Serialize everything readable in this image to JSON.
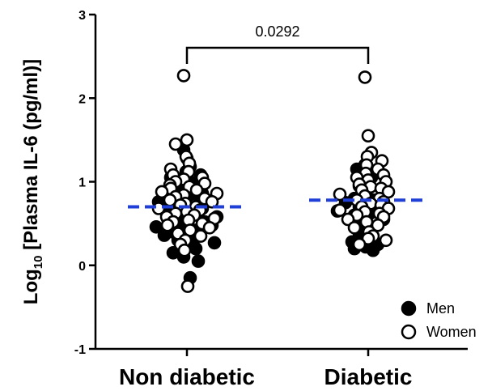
{
  "chart_data": {
    "type": "scatter",
    "ylabel": {
      "prefix": "Log",
      "subscript": "10",
      "suffix": " [Plasma IL-6 (pg/ml)]"
    },
    "ylim": [
      -1,
      3
    ],
    "yticks": [
      "-1",
      "0",
      "1",
      "2",
      "3"
    ],
    "categories": [
      "Non diabetic",
      "Diabetic"
    ],
    "medians": [
      0.7,
      0.78
    ],
    "median_color": "#1f3fd6",
    "comparison": {
      "between": [
        "Non diabetic",
        "Diabetic"
      ],
      "p_value": "0.0292"
    },
    "series": [
      {
        "name": "Men",
        "fill": "#000000",
        "points": [
          {
            "group": "Non diabetic",
            "y": 1.38
          },
          {
            "group": "Non diabetic",
            "y": 1.28
          },
          {
            "group": "Non diabetic",
            "y": 1.18
          },
          {
            "group": "Non diabetic",
            "y": 1.12
          },
          {
            "group": "Non diabetic",
            "y": 1.08
          },
          {
            "group": "Non diabetic",
            "y": 1.05
          },
          {
            "group": "Non diabetic",
            "y": 1.02
          },
          {
            "group": "Non diabetic",
            "y": 0.98
          },
          {
            "group": "Non diabetic",
            "y": 0.95
          },
          {
            "group": "Non diabetic",
            "y": 0.92
          },
          {
            "group": "Non diabetic",
            "y": 0.9
          },
          {
            "group": "Non diabetic",
            "y": 0.88
          },
          {
            "group": "Non diabetic",
            "y": 0.86
          },
          {
            "group": "Non diabetic",
            "y": 0.84
          },
          {
            "group": "Non diabetic",
            "y": 0.82
          },
          {
            "group": "Non diabetic",
            "y": 0.8
          },
          {
            "group": "Non diabetic",
            "y": 0.78
          },
          {
            "group": "Non diabetic",
            "y": 0.76
          },
          {
            "group": "Non diabetic",
            "y": 0.74
          },
          {
            "group": "Non diabetic",
            "y": 0.72
          },
          {
            "group": "Non diabetic",
            "y": 0.7
          },
          {
            "group": "Non diabetic",
            "y": 0.68
          },
          {
            "group": "Non diabetic",
            "y": 0.66
          },
          {
            "group": "Non diabetic",
            "y": 0.64
          },
          {
            "group": "Non diabetic",
            "y": 0.62
          },
          {
            "group": "Non diabetic",
            "y": 0.6
          },
          {
            "group": "Non diabetic",
            "y": 0.58
          },
          {
            "group": "Non diabetic",
            "y": 0.56
          },
          {
            "group": "Non diabetic",
            "y": 0.54
          },
          {
            "group": "Non diabetic",
            "y": 0.52
          },
          {
            "group": "Non diabetic",
            "y": 0.5
          },
          {
            "group": "Non diabetic",
            "y": 0.48
          },
          {
            "group": "Non diabetic",
            "y": 0.46
          },
          {
            "group": "Non diabetic",
            "y": 0.44
          },
          {
            "group": "Non diabetic",
            "y": 0.42
          },
          {
            "group": "Non diabetic",
            "y": 0.4
          },
          {
            "group": "Non diabetic",
            "y": 0.38
          },
          {
            "group": "Non diabetic",
            "y": 0.36
          },
          {
            "group": "Non diabetic",
            "y": 0.34
          },
          {
            "group": "Non diabetic",
            "y": 0.32
          },
          {
            "group": "Non diabetic",
            "y": 0.3
          },
          {
            "group": "Non diabetic",
            "y": 0.27
          },
          {
            "group": "Non diabetic",
            "y": 0.24
          },
          {
            "group": "Non diabetic",
            "y": 0.2
          },
          {
            "group": "Non diabetic",
            "y": 0.15
          },
          {
            "group": "Non diabetic",
            "y": 0.1
          },
          {
            "group": "Non diabetic",
            "y": 0.05
          },
          {
            "group": "Non diabetic",
            "y": -0.15
          },
          {
            "group": "Diabetic",
            "y": 1.2
          },
          {
            "group": "Diabetic",
            "y": 1.15
          },
          {
            "group": "Diabetic",
            "y": 1.05
          },
          {
            "group": "Diabetic",
            "y": 0.98
          },
          {
            "group": "Diabetic",
            "y": 0.95
          },
          {
            "group": "Diabetic",
            "y": 0.9
          },
          {
            "group": "Diabetic",
            "y": 0.86
          },
          {
            "group": "Diabetic",
            "y": 0.82
          },
          {
            "group": "Diabetic",
            "y": 0.8
          },
          {
            "group": "Diabetic",
            "y": 0.78
          },
          {
            "group": "Diabetic",
            "y": 0.75
          },
          {
            "group": "Diabetic",
            "y": 0.72
          },
          {
            "group": "Diabetic",
            "y": 0.7
          },
          {
            "group": "Diabetic",
            "y": 0.68
          },
          {
            "group": "Diabetic",
            "y": 0.65
          },
          {
            "group": "Diabetic",
            "y": 0.62
          },
          {
            "group": "Diabetic",
            "y": 0.6
          },
          {
            "group": "Diabetic",
            "y": 0.55
          },
          {
            "group": "Diabetic",
            "y": 0.5
          },
          {
            "group": "Diabetic",
            "y": 0.45
          },
          {
            "group": "Diabetic",
            "y": 0.42
          },
          {
            "group": "Diabetic",
            "y": 0.38
          },
          {
            "group": "Diabetic",
            "y": 0.33
          },
          {
            "group": "Diabetic",
            "y": 0.28
          },
          {
            "group": "Diabetic",
            "y": 0.25
          },
          {
            "group": "Diabetic",
            "y": 0.22
          },
          {
            "group": "Diabetic",
            "y": 0.2
          },
          {
            "group": "Diabetic",
            "y": 0.18
          }
        ]
      },
      {
        "name": "Women",
        "fill": "#ffffff",
        "points": [
          {
            "group": "Non diabetic",
            "y": 2.27
          },
          {
            "group": "Non diabetic",
            "y": 1.5
          },
          {
            "group": "Non diabetic",
            "y": 1.45
          },
          {
            "group": "Non diabetic",
            "y": 1.3
          },
          {
            "group": "Non diabetic",
            "y": 1.22
          },
          {
            "group": "Non diabetic",
            "y": 1.15
          },
          {
            "group": "Non diabetic",
            "y": 1.12
          },
          {
            "group": "Non diabetic",
            "y": 1.08
          },
          {
            "group": "Non diabetic",
            "y": 1.05
          },
          {
            "group": "Non diabetic",
            "y": 1.03
          },
          {
            "group": "Non diabetic",
            "y": 1.0
          },
          {
            "group": "Non diabetic",
            "y": 0.98
          },
          {
            "group": "Non diabetic",
            "y": 0.96
          },
          {
            "group": "Non diabetic",
            "y": 0.94
          },
          {
            "group": "Non diabetic",
            "y": 0.92
          },
          {
            "group": "Non diabetic",
            "y": 0.9
          },
          {
            "group": "Non diabetic",
            "y": 0.88
          },
          {
            "group": "Non diabetic",
            "y": 0.86
          },
          {
            "group": "Non diabetic",
            "y": 0.84
          },
          {
            "group": "Non diabetic",
            "y": 0.82
          },
          {
            "group": "Non diabetic",
            "y": 0.8
          },
          {
            "group": "Non diabetic",
            "y": 0.78
          },
          {
            "group": "Non diabetic",
            "y": 0.76
          },
          {
            "group": "Non diabetic",
            "y": 0.74
          },
          {
            "group": "Non diabetic",
            "y": 0.72
          },
          {
            "group": "Non diabetic",
            "y": 0.7
          },
          {
            "group": "Non diabetic",
            "y": 0.68
          },
          {
            "group": "Non diabetic",
            "y": 0.66
          },
          {
            "group": "Non diabetic",
            "y": 0.64
          },
          {
            "group": "Non diabetic",
            "y": 0.62
          },
          {
            "group": "Non diabetic",
            "y": 0.6
          },
          {
            "group": "Non diabetic",
            "y": 0.58
          },
          {
            "group": "Non diabetic",
            "y": 0.56
          },
          {
            "group": "Non diabetic",
            "y": 0.54
          },
          {
            "group": "Non diabetic",
            "y": 0.52
          },
          {
            "group": "Non diabetic",
            "y": 0.5
          },
          {
            "group": "Non diabetic",
            "y": 0.48
          },
          {
            "group": "Non diabetic",
            "y": 0.45
          },
          {
            "group": "Non diabetic",
            "y": 0.42
          },
          {
            "group": "Non diabetic",
            "y": 0.38
          },
          {
            "group": "Non diabetic",
            "y": 0.35
          },
          {
            "group": "Non diabetic",
            "y": 0.3
          },
          {
            "group": "Non diabetic",
            "y": 0.25
          },
          {
            "group": "Non diabetic",
            "y": 0.18
          },
          {
            "group": "Non diabetic",
            "y": -0.25
          },
          {
            "group": "Diabetic",
            "y": 2.25
          },
          {
            "group": "Diabetic",
            "y": 1.55
          },
          {
            "group": "Diabetic",
            "y": 1.35
          },
          {
            "group": "Diabetic",
            "y": 1.3
          },
          {
            "group": "Diabetic",
            "y": 1.25
          },
          {
            "group": "Diabetic",
            "y": 1.2
          },
          {
            "group": "Diabetic",
            "y": 1.15
          },
          {
            "group": "Diabetic",
            "y": 1.1
          },
          {
            "group": "Diabetic",
            "y": 1.08
          },
          {
            "group": "Diabetic",
            "y": 1.05
          },
          {
            "group": "Diabetic",
            "y": 1.02
          },
          {
            "group": "Diabetic",
            "y": 1.0
          },
          {
            "group": "Diabetic",
            "y": 0.97
          },
          {
            "group": "Diabetic",
            "y": 0.94
          },
          {
            "group": "Diabetic",
            "y": 0.92
          },
          {
            "group": "Diabetic",
            "y": 0.9
          },
          {
            "group": "Diabetic",
            "y": 0.88
          },
          {
            "group": "Diabetic",
            "y": 0.85
          },
          {
            "group": "Diabetic",
            "y": 0.83
          },
          {
            "group": "Diabetic",
            "y": 0.8
          },
          {
            "group": "Diabetic",
            "y": 0.78
          },
          {
            "group": "Diabetic",
            "y": 0.76
          },
          {
            "group": "Diabetic",
            "y": 0.74
          },
          {
            "group": "Diabetic",
            "y": 0.72
          },
          {
            "group": "Diabetic",
            "y": 0.7
          },
          {
            "group": "Diabetic",
            "y": 0.68
          },
          {
            "group": "Diabetic",
            "y": 0.66
          },
          {
            "group": "Diabetic",
            "y": 0.64
          },
          {
            "group": "Diabetic",
            "y": 0.62
          },
          {
            "group": "Diabetic",
            "y": 0.6
          },
          {
            "group": "Diabetic",
            "y": 0.58
          },
          {
            "group": "Diabetic",
            "y": 0.55
          },
          {
            "group": "Diabetic",
            "y": 0.52
          },
          {
            "group": "Diabetic",
            "y": 0.48
          },
          {
            "group": "Diabetic",
            "y": 0.45
          },
          {
            "group": "Diabetic",
            "y": 0.4
          },
          {
            "group": "Diabetic",
            "y": 0.35
          },
          {
            "group": "Diabetic",
            "y": 0.32
          },
          {
            "group": "Diabetic",
            "y": 0.3
          },
          {
            "group": "Diabetic",
            "y": 0.25
          }
        ]
      }
    ],
    "legend": {
      "position": "bottom-right",
      "entries": [
        "Men",
        "Women"
      ]
    },
    "grid": false
  }
}
